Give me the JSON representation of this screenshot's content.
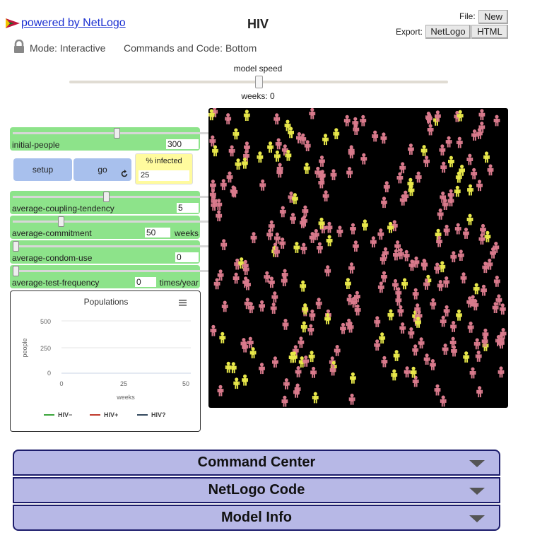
{
  "header": {
    "powered_by": "powered by NetLogo",
    "title": "HIV",
    "file_label": "File:",
    "new_button": "New",
    "export_label": "Export:",
    "export_netlogo": "NetLogo",
    "export_html": "HTML",
    "mode": "Mode: Interactive",
    "commands_position": "Commands and Code: Bottom"
  },
  "speed": {
    "label": "model speed",
    "ticks": "weeks: 0",
    "value": 0.5
  },
  "sliders": [
    {
      "name": "initial-people",
      "value": "300",
      "unit": "",
      "position": 0.56
    },
    {
      "name": "average-coupling-tendency",
      "value": "5",
      "unit": "",
      "position": 0.5
    },
    {
      "name": "average-commitment",
      "value": "50",
      "unit": "weeks",
      "position": 0.25
    },
    {
      "name": "average-condom-use",
      "value": "0",
      "unit": "",
      "position": 0.0
    },
    {
      "name": "average-test-frequency",
      "value": "0",
      "unit": "times/year",
      "position": 0.0
    }
  ],
  "buttons": {
    "setup": "setup",
    "go": "go"
  },
  "monitor": {
    "label": "% infected",
    "value": "25"
  },
  "plot": {
    "title": "Populations",
    "menu_icon": "hamburger-icon",
    "chart_data": {
      "type": "line",
      "title": "Populations",
      "xlabel": "weeks",
      "ylabel": "people",
      "xlim": [
        0,
        50
      ],
      "ylim": [
        0,
        500
      ],
      "x_ticks": [
        "0",
        "25",
        "50"
      ],
      "y_ticks": [
        "500",
        "250",
        "0"
      ],
      "series": [
        {
          "name": "HIV−",
          "color": "#3aa53a",
          "values": []
        },
        {
          "name": "HIV+",
          "color": "#c0392b",
          "values": []
        },
        {
          "name": "HIV?",
          "color": "#34495e",
          "values": []
        }
      ]
    }
  },
  "panels": {
    "command_center": "Command Center",
    "netlogo_code": "NetLogo Code",
    "model_info": "Model Info"
  },
  "colors": {
    "healthy": "#d97a8c",
    "infected": "#e8e84a",
    "slider_bg": "#8de38a",
    "button_bg": "#a8c0ed",
    "monitor_bg": "#fffb9e"
  }
}
